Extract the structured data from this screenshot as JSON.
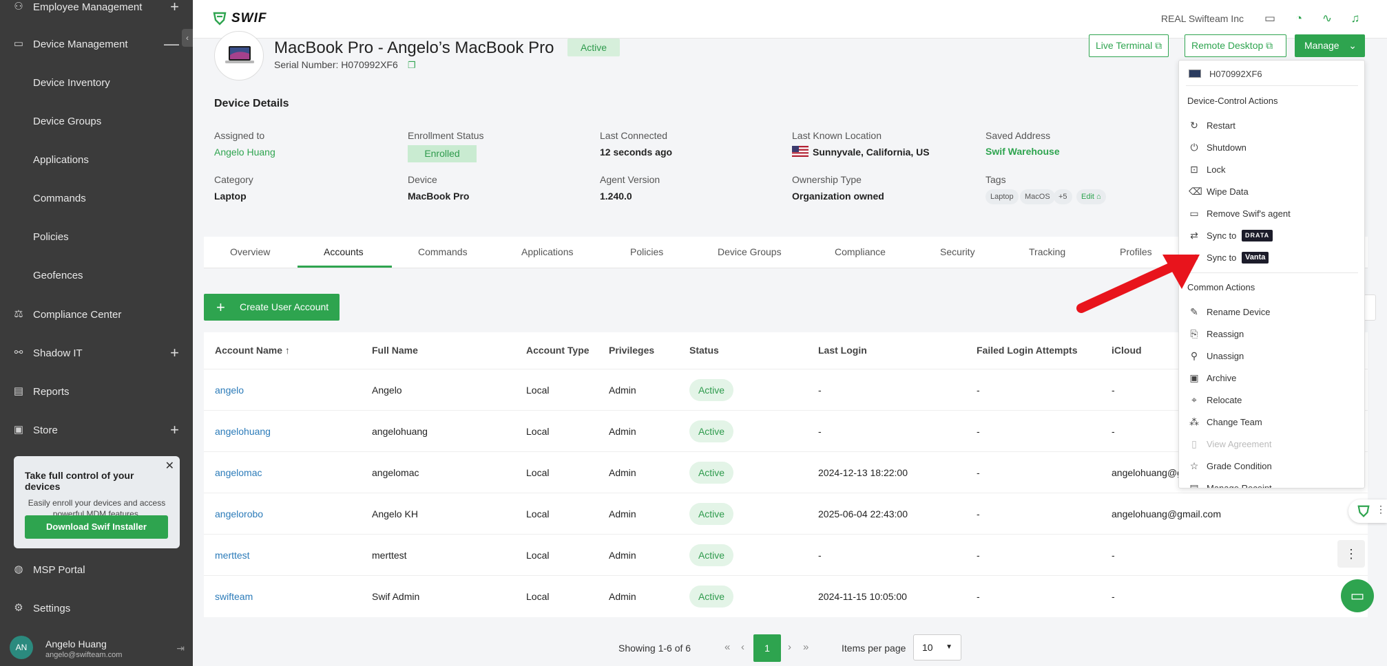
{
  "sidebar": {
    "items": [
      {
        "label": "Employee Management",
        "icon": "people-icon",
        "expand": "+"
      },
      {
        "label": "Device Management",
        "icon": "device-icon",
        "expand": "—"
      },
      {
        "label": "Device Inventory"
      },
      {
        "label": "Device Groups"
      },
      {
        "label": "Applications"
      },
      {
        "label": "Commands"
      },
      {
        "label": "Policies"
      },
      {
        "label": "Geofences"
      },
      {
        "label": "Compliance Center",
        "icon": "gavel-icon"
      },
      {
        "label": "Shadow IT",
        "icon": "network-icon",
        "expand": "+"
      },
      {
        "label": "Reports",
        "icon": "report-icon"
      },
      {
        "label": "Store",
        "icon": "bag-icon",
        "expand": "+"
      },
      {
        "label": "MSP Portal",
        "icon": "msp-icon"
      },
      {
        "label": "Settings",
        "icon": "gear-icon"
      }
    ],
    "promo": {
      "title": "Take full control of your devices",
      "text": "Easily enroll your devices and access powerful MDM features.",
      "button": "Download Swif Installer"
    },
    "user": {
      "initials": "AN",
      "name": "Angelo Huang",
      "email": "angelo@swifteam.com"
    }
  },
  "topbar": {
    "logo_text": "SWIF",
    "org_name": "REAL Swifteam Inc"
  },
  "device": {
    "title": "MacBook Pro - Angelo’s MacBook Pro",
    "status": "Active",
    "serial_label": "Serial Number: H070992XF6",
    "buttons": {
      "live_terminal": "Live Terminal",
      "remote_desktop": "Remote Desktop",
      "manage": "Manage"
    }
  },
  "details": {
    "title": "Device Details",
    "assigned_to_label": "Assigned to",
    "assigned_to": "Angelo Huang",
    "enrollment_label": "Enrollment Status",
    "enrollment": "Enrolled",
    "last_connected_label": "Last Connected",
    "last_connected": "12 seconds ago",
    "location_label": "Last Known Location",
    "location": "Sunnyvale, California, US",
    "saved_address_label": "Saved Address",
    "saved_address": "Swif Warehouse",
    "category_label": "Category",
    "category": "Laptop",
    "device_label": "Device",
    "device": "MacBook Pro",
    "agent_label": "Agent Version",
    "agent": "1.240.0",
    "ownership_label": "Ownership Type",
    "ownership": "Organization owned",
    "tags_label": "Tags",
    "tags": [
      "Laptop",
      "MacOS",
      "+5",
      "Edit"
    ]
  },
  "tabs": [
    "Overview",
    "Accounts",
    "Commands",
    "Applications",
    "Policies",
    "Device Groups",
    "Compliance",
    "Security",
    "Tracking",
    "Profiles"
  ],
  "accounts": {
    "create_button": "Create User Account",
    "columns": [
      "Account Name",
      "Full Name",
      "Account Type",
      "Privileges",
      "Status",
      "Last Login",
      "Failed Login Attempts",
      "iCloud"
    ],
    "rows": [
      {
        "account": "angelo",
        "full": "Angelo",
        "type": "Local",
        "priv": "Admin",
        "status": "Active",
        "last": "-",
        "failed": "-",
        "icloud": "-"
      },
      {
        "account": "angelohuang",
        "full": "angelohuang",
        "type": "Local",
        "priv": "Admin",
        "status": "Active",
        "last": "-",
        "failed": "-",
        "icloud": "-"
      },
      {
        "account": "angelomac",
        "full": "angelomac",
        "type": "Local",
        "priv": "Admin",
        "status": "Active",
        "last": "2024-12-13 18:22:00",
        "failed": "-",
        "icloud": "angelohuang@g"
      },
      {
        "account": "angelorobo",
        "full": "Angelo KH",
        "type": "Local",
        "priv": "Admin",
        "status": "Active",
        "last": "2025-06-04 22:43:00",
        "failed": "-",
        "icloud": "angelohuang@gmail.com"
      },
      {
        "account": "merttest",
        "full": "merttest",
        "type": "Local",
        "priv": "Admin",
        "status": "Active",
        "last": "-",
        "failed": "-",
        "icloud": "-"
      },
      {
        "account": "swifteam",
        "full": "Swif Admin",
        "type": "Local",
        "priv": "Admin",
        "status": "Active",
        "last": "2024-11-15 10:05:00",
        "failed": "-",
        "icloud": "-"
      }
    ]
  },
  "pager": {
    "showing": "Showing 1-6 of 6",
    "page": "1",
    "ipp_label": "Items per page",
    "ipp_value": "10"
  },
  "menu": {
    "serial": "H070992XF6",
    "device_control_title": "Device-Control Actions",
    "device_control": [
      {
        "label": "Restart",
        "icon": "restart-icon"
      },
      {
        "label": "Shutdown",
        "icon": "power-icon"
      },
      {
        "label": "Lock",
        "icon": "lock-icon"
      },
      {
        "label": "Wipe Data",
        "icon": "wipe-icon"
      },
      {
        "label": "Remove Swif's agent",
        "icon": "remove-agent-icon"
      },
      {
        "label": "Sync to",
        "icon": "sync-icon",
        "brand": "DRATA"
      },
      {
        "label": "Sync to",
        "icon": "sync-icon",
        "brand": "Vanta"
      }
    ],
    "common_title": "Common Actions",
    "common": [
      {
        "label": "Rename Device",
        "icon": "pencil-icon"
      },
      {
        "label": "Reassign",
        "icon": "reassign-icon"
      },
      {
        "label": "Unassign",
        "icon": "unassign-icon"
      },
      {
        "label": "Archive",
        "icon": "archive-icon"
      },
      {
        "label": "Relocate",
        "icon": "relocate-icon"
      },
      {
        "label": "Change Team",
        "icon": "team-icon"
      },
      {
        "label": "View Agreement",
        "icon": "document-icon",
        "disabled": true
      },
      {
        "label": "Grade Condition",
        "icon": "star-icon"
      },
      {
        "label": "Manage Receipt",
        "icon": "receipt-icon"
      }
    ]
  },
  "colors": {
    "accent": "#2ea44f",
    "sidebar": "#3b3b3b",
    "link": "#2b7bb9",
    "arrow": "#e8141c"
  }
}
